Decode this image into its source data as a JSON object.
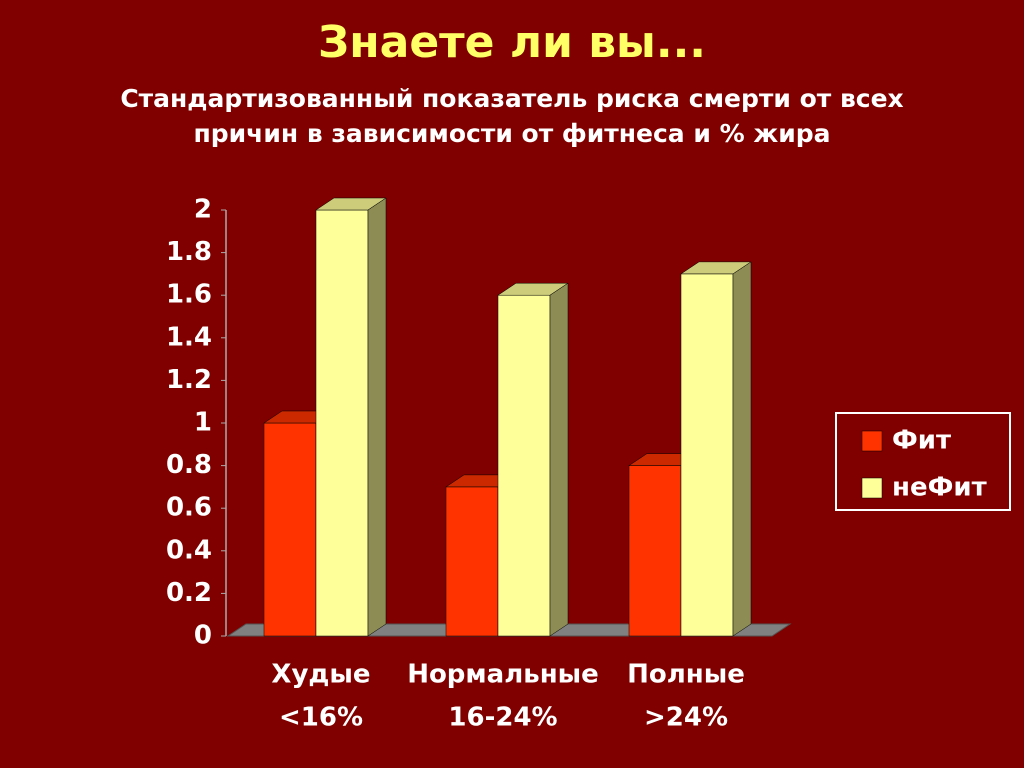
{
  "chart_data": {
    "type": "bar3d",
    "title": "Знаете ли вы...",
    "subtitle": [
      "Стандартизованный показатель риска смерти от всех",
      "причин в  зависимости от фитнеса и % жира"
    ],
    "categories": [
      [
        "Худые",
        "<16%"
      ],
      [
        "Нормальные",
        "16-24%"
      ],
      [
        "Полные",
        ">24%"
      ]
    ],
    "series": [
      {
        "name": "Фит",
        "color": "#ff3300",
        "values": [
          1,
          0.7,
          0.8
        ]
      },
      {
        "name": "неФит",
        "color": "#ffff99",
        "values": [
          2,
          1.6,
          1.7
        ]
      }
    ],
    "ylim": [
      0,
      2
    ],
    "yticks": [
      0,
      0.2,
      0.4,
      0.6,
      0.8,
      1,
      1.2,
      1.4,
      1.6,
      1.8,
      2
    ],
    "grid": false,
    "legend": "right"
  }
}
